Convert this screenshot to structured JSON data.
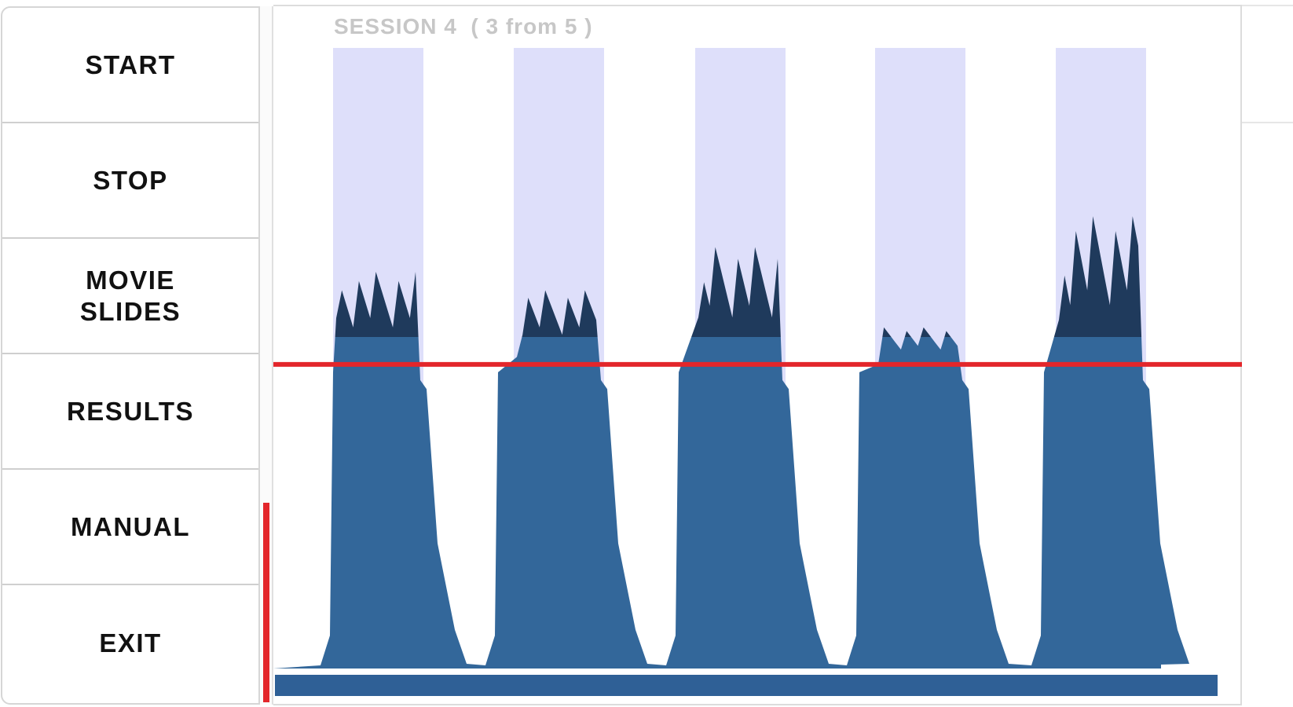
{
  "menu": {
    "items": [
      {
        "label": "START"
      },
      {
        "label": "STOP"
      },
      {
        "label": "MOVIE\nSLIDES"
      },
      {
        "label": "RESULTS"
      },
      {
        "label": "MANUAL"
      },
      {
        "label": "EXIT"
      }
    ]
  },
  "session": {
    "title": "SESSION 4  ( 3 from 5 )"
  },
  "colors": {
    "block_shading": "#dedffa",
    "signal_below": "#33679a",
    "signal_above": "#1f3a5c",
    "threshold_line": "#e3262b",
    "baseline_bar": "#2f6096",
    "active_marker": "#e3262b"
  },
  "chart_data": {
    "type": "area",
    "blocks": 5,
    "threshold": 0.49,
    "ylim": [
      0,
      1
    ],
    "peaks": [
      {
        "block": 1,
        "peak": 0.64
      },
      {
        "block": 2,
        "peak": 0.61
      },
      {
        "block": 3,
        "peak": 0.68
      },
      {
        "block": 4,
        "peak": 0.55
      },
      {
        "block": 5,
        "peak": 0.73
      }
    ]
  }
}
